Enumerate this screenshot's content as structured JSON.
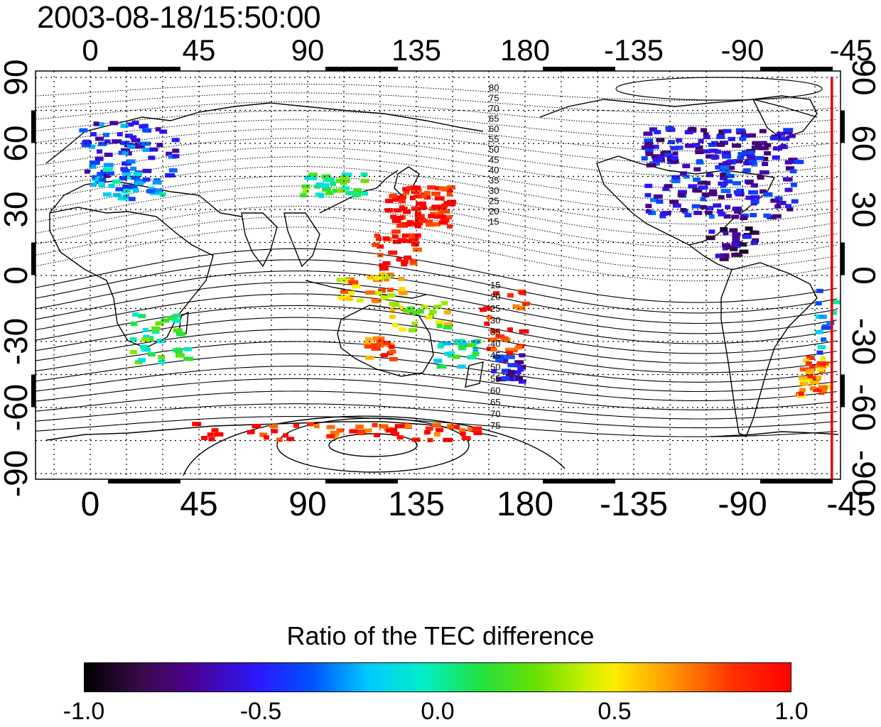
{
  "timestamp": "2003-08-18/15:50:00",
  "axes": {
    "lon_ticks": [
      "0",
      "45",
      "90",
      "135",
      "180",
      "-135",
      "-90",
      "-45"
    ],
    "lat_ticks": [
      "90",
      "60",
      "30",
      "0",
      "-30",
      "-60",
      "-90"
    ]
  },
  "contour_labels": {
    "north": [
      "80",
      "75",
      "70",
      "65",
      "60",
      "55",
      "50",
      "45",
      "40",
      "35",
      "30",
      "25",
      "20",
      "15"
    ],
    "south": [
      "15",
      "20",
      "25",
      "30",
      "35",
      "40",
      "45",
      "50",
      "55",
      "60",
      "65",
      "70",
      "75"
    ]
  },
  "marker_line": {
    "lon": -53,
    "color": "#e00000"
  },
  "colorbar": {
    "title": "Ratio of the TEC difference",
    "labels": [
      "-1.0",
      "-0.5",
      "0.0",
      "0.5",
      "1.0"
    ],
    "range": [
      -1.0,
      1.0
    ]
  },
  "data_patches": [
    {
      "region": "europe",
      "lon": 15,
      "lat": 58,
      "value": -0.45
    },
    {
      "region": "europe-south",
      "lon": 15,
      "lat": 42,
      "value": -0.2
    },
    {
      "region": "central-asia",
      "lon": 100,
      "lat": 42,
      "value": 0.1
    },
    {
      "region": "japan-east-asia",
      "lon": 135,
      "lat": 32,
      "value": 1.0
    },
    {
      "region": "philippines",
      "lon": 125,
      "lat": 12,
      "value": 1.0
    },
    {
      "region": "indonesia",
      "lon": 115,
      "lat": -5,
      "value": 0.6
    },
    {
      "region": "australia-north",
      "lon": 135,
      "lat": -18,
      "value": 0.4
    },
    {
      "region": "australia-west",
      "lon": 118,
      "lat": -32,
      "value": 0.8
    },
    {
      "region": "australia-east",
      "lon": 150,
      "lat": -35,
      "value": 0.0
    },
    {
      "region": "new-zealand",
      "lon": 172,
      "lat": -42,
      "value": -0.55
    },
    {
      "region": "pacific-islands",
      "lon": 170,
      "lat": -20,
      "value": 0.9
    },
    {
      "region": "south-africa",
      "lon": 28,
      "lat": -28,
      "value": 0.1
    },
    {
      "region": "north-america",
      "lon": -100,
      "lat": 40,
      "value": -0.55
    },
    {
      "region": "canada",
      "lon": -100,
      "lat": 60,
      "value": -0.6
    },
    {
      "region": "central-america",
      "lon": -95,
      "lat": 15,
      "value": -0.7
    },
    {
      "region": "south-america-east",
      "lon": -50,
      "lat": -20,
      "value": -0.2
    },
    {
      "region": "argentina",
      "lon": -62,
      "lat": -45,
      "value": 0.7
    },
    {
      "region": "antarctica",
      "lon": 100,
      "lat": -70,
      "value": 0.9
    }
  ]
}
